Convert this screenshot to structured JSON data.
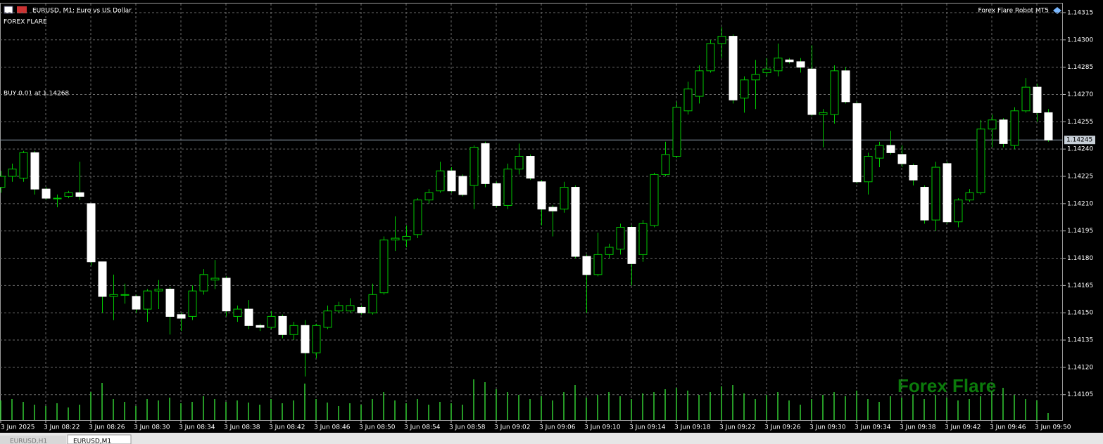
{
  "chart_data": {
    "type": "candlestick",
    "title": "EURUSD, M1:  Euro vs US Dollar",
    "indicator_label": "FOREX FLARE",
    "trade_label": "BUY 0.01 at 1.14268",
    "expert_label": "Forex Flare Robot MT5",
    "watermark": "Forex Flare",
    "last_price": 1.14245,
    "categories": [
      "3 Jun 2025",
      null,
      null,
      null,
      "3 Jun 08:22",
      null,
      null,
      null,
      "3 Jun 08:26",
      null,
      null,
      null,
      "3 Jun 08:30",
      null,
      null,
      null,
      "3 Jun 08:34",
      null,
      null,
      null,
      "3 Jun 08:38",
      null,
      null,
      null,
      "3 Jun 08:42",
      null,
      null,
      null,
      "3 Jun 08:46",
      null,
      null,
      null,
      "3 Jun 08:50",
      null,
      null,
      null,
      "3 Jun 08:54",
      null,
      null,
      null,
      "3 Jun 08:58",
      null,
      null,
      null,
      "3 Jun 09:02",
      null,
      null,
      null,
      "3 Jun 09:06",
      null,
      null,
      null,
      "3 Jun 09:10",
      null,
      null,
      null,
      "3 Jun 09:14",
      null,
      null,
      null,
      "3 Jun 09:18",
      null,
      null,
      null,
      "3 Jun 09:22",
      null,
      null,
      null,
      "3 Jun 09:26",
      null,
      null,
      null,
      "3 Jun 09:30",
      null,
      null,
      null,
      "3 Jun 09:34",
      null,
      null,
      null,
      "3 Jun 09:38",
      null,
      null,
      null,
      "3 Jun 09:42",
      null,
      null,
      null,
      "3 Jun 09:46",
      null,
      null,
      null,
      "3 Jun 09:50",
      null
    ],
    "open": [
      1.14219,
      1.14225,
      1.14224,
      1.14238,
      1.14218,
      1.14213,
      1.14214,
      1.14216,
      1.1421,
      1.14178,
      1.14159,
      1.1416,
      1.14159,
      1.14152,
      1.14162,
      1.14163,
      1.14149,
      1.14148,
      1.14162,
      1.14168,
      1.14169,
      1.14148,
      1.14152,
      1.14143,
      1.14142,
      1.14148,
      1.14138,
      1.14143,
      1.14128,
      1.14142,
      1.14151,
      1.14151,
      1.14153,
      1.1415,
      1.14161,
      1.1419,
      1.1419,
      1.14193,
      1.14212,
      1.14217,
      1.14228,
      1.14225,
      1.1422,
      1.14243,
      1.14221,
      1.14209,
      1.14229,
      1.14236,
      1.14222,
      1.14208,
      1.14207,
      1.14219,
      1.14181,
      1.14171,
      1.14182,
      1.14185,
      1.14197,
      1.14182,
      1.14198,
      1.14226,
      1.14236,
      1.14261,
      1.14269,
      1.14283,
      1.14298,
      1.14302,
      1.14268,
      1.14278,
      1.14282,
      1.14283,
      1.14289,
      1.14288,
      1.14284,
      1.14259,
      1.14259,
      1.14283,
      1.14265,
      1.14222,
      1.14235,
      1.14242,
      1.14237,
      1.14231,
      1.14219,
      1.14201,
      1.14232,
      1.142,
      1.14212,
      1.14216,
      1.14251,
      1.14256,
      1.14242,
      1.14261,
      1.14274,
      1.1426
    ],
    "high": [
      1.14228,
      1.14232,
      1.14239,
      1.14239,
      1.14219,
      1.14215,
      1.14217,
      1.14233,
      1.1421,
      1.14178,
      1.14171,
      1.14166,
      1.1416,
      1.14163,
      1.14168,
      1.14164,
      1.1415,
      1.14165,
      1.14174,
      1.14179,
      1.1417,
      1.14154,
      1.14157,
      1.14144,
      1.14151,
      1.14149,
      1.14145,
      1.14146,
      1.14144,
      1.14154,
      1.14156,
      1.14158,
      1.14154,
      1.14166,
      1.14192,
      1.14203,
      1.14198,
      1.14213,
      1.14218,
      1.14233,
      1.1423,
      1.14226,
      1.14242,
      1.14244,
      1.14222,
      1.14232,
      1.14243,
      1.14237,
      1.14223,
      1.14209,
      1.14222,
      1.1422,
      1.14182,
      1.14194,
      1.14188,
      1.14199,
      1.14198,
      1.14201,
      1.14227,
      1.14244,
      1.14266,
      1.14277,
      1.14286,
      1.143,
      1.14307,
      1.14303,
      1.1428,
      1.14289,
      1.1429,
      1.14298,
      1.1429,
      1.1429,
      1.14297,
      1.14262,
      1.14286,
      1.14285,
      1.14266,
      1.14238,
      1.14244,
      1.1425,
      1.14242,
      1.14232,
      1.1422,
      1.14233,
      1.14233,
      1.14213,
      1.14218,
      1.14256,
      1.14259,
      1.14257,
      1.14263,
      1.14279,
      1.14276,
      1.14262
    ],
    "low": [
      1.14216,
      1.14222,
      1.14222,
      1.14215,
      1.14212,
      1.14208,
      1.14213,
      1.14212,
      1.14176,
      1.1415,
      1.14146,
      1.14155,
      1.1415,
      1.14145,
      1.14152,
      1.14138,
      1.1414,
      1.14146,
      1.1416,
      1.14163,
      1.14148,
      1.14145,
      1.14141,
      1.1414,
      1.14141,
      1.14136,
      1.14135,
      1.14115,
      1.14125,
      1.14141,
      1.1415,
      1.1415,
      1.14149,
      1.14149,
      1.1416,
      1.14184,
      1.14186,
      1.14191,
      1.1421,
      1.14216,
      1.14216,
      1.14214,
      1.14207,
      1.14219,
      1.14208,
      1.14207,
      1.14226,
      1.14223,
      1.14198,
      1.14192,
      1.14205,
      1.1418,
      1.1415,
      1.1417,
      1.1418,
      1.14182,
      1.14165,
      1.14178,
      1.14197,
      1.14225,
      1.14235,
      1.14259,
      1.14265,
      1.14282,
      1.1429,
      1.14265,
      1.1426,
      1.14262,
      1.1428,
      1.1428,
      1.14287,
      1.14282,
      1.14258,
      1.14241,
      1.14254,
      1.14265,
      1.14221,
      1.14215,
      1.1423,
      1.14237,
      1.1423,
      1.1422,
      1.14199,
      1.14195,
      1.14199,
      1.14197,
      1.14211,
      1.14215,
      1.14241,
      1.14241,
      1.1424,
      1.1426,
      1.14255,
      1.14244
    ],
    "close": [
      1.14225,
      1.14229,
      1.14238,
      1.14218,
      1.14213,
      1.14213,
      1.14216,
      1.14214,
      1.14178,
      1.14159,
      1.1416,
      1.1416,
      1.14152,
      1.14162,
      1.14163,
      1.14148,
      1.14147,
      1.14162,
      1.14171,
      1.14169,
      1.14151,
      1.14152,
      1.14143,
      1.14142,
      1.14148,
      1.14138,
      1.14143,
      1.14128,
      1.14143,
      1.14151,
      1.14154,
      1.14154,
      1.1415,
      1.1416,
      1.1419,
      1.14191,
      1.14192,
      1.14212,
      1.14216,
      1.14228,
      1.14217,
      1.14215,
      1.14241,
      1.14221,
      1.14209,
      1.14229,
      1.14236,
      1.14224,
      1.14207,
      1.14206,
      1.14219,
      1.14181,
      1.14171,
      1.14182,
      1.14186,
      1.14197,
      1.14177,
      1.14199,
      1.14226,
      1.14237,
      1.14263,
      1.14273,
      1.14283,
      1.14298,
      1.14302,
      1.14267,
      1.14278,
      1.14281,
      1.14284,
      1.1429,
      1.14288,
      1.14285,
      1.14259,
      1.1426,
      1.14283,
      1.14266,
      1.14222,
      1.14236,
      1.14242,
      1.14238,
      1.14232,
      1.14223,
      1.14201,
      1.1423,
      1.142,
      1.14212,
      1.14216,
      1.14251,
      1.14256,
      1.14243,
      1.14261,
      1.14274,
      1.1426,
      1.14245
    ],
    "volume": [
      28,
      30,
      26,
      22,
      20,
      24,
      18,
      22,
      40,
      53,
      30,
      26,
      20,
      30,
      28,
      32,
      24,
      26,
      34,
      30,
      26,
      28,
      25,
      22,
      30,
      24,
      28,
      52,
      30,
      25,
      20,
      24,
      22,
      30,
      40,
      28,
      24,
      30,
      22,
      26,
      24,
      22,
      58,
      54,
      44,
      40,
      36,
      30,
      34,
      28,
      40,
      50,
      32,
      36,
      40,
      34,
      30,
      38,
      40,
      44,
      46,
      42,
      36,
      40,
      48,
      50,
      38,
      30,
      36,
      40,
      28,
      22,
      30,
      36,
      40,
      34,
      42,
      30,
      26,
      34,
      32,
      36,
      30,
      36,
      32,
      28,
      30,
      34,
      40,
      46,
      36,
      30,
      28,
      10
    ],
    "ylim": [
      1.14091,
      1.1432
    ],
    "yticks": [
      1.14105,
      {
        "value": 1.1412,
        "label": "1.14120"
      },
      1.14135,
      {
        "value": 1.1415,
        "label": "1.14150"
      },
      1.14165,
      {
        "value": 1.1418,
        "label": "1.14180"
      },
      1.14195,
      {
        "value": 1.1421,
        "label": "1.14210"
      },
      1.14225,
      {
        "value": 1.1424,
        "label": "1.14240"
      },
      1.14255,
      {
        "value": 1.1427,
        "label": "1.14270"
      },
      1.14285,
      {
        "value": 1.143,
        "label": "1.14300"
      },
      1.14315
    ],
    "grid": true,
    "wick_color": "#00c800",
    "bull_fill": "#000000",
    "bull_stroke": "#00c800",
    "bear_fill": "#ffffff",
    "bear_stroke": "#ffffff",
    "volume_color": "#32cd32",
    "watermark_color": "#0b7a0b"
  },
  "tabs": [
    "EURUSD,H1",
    "EURUSD,M1"
  ]
}
